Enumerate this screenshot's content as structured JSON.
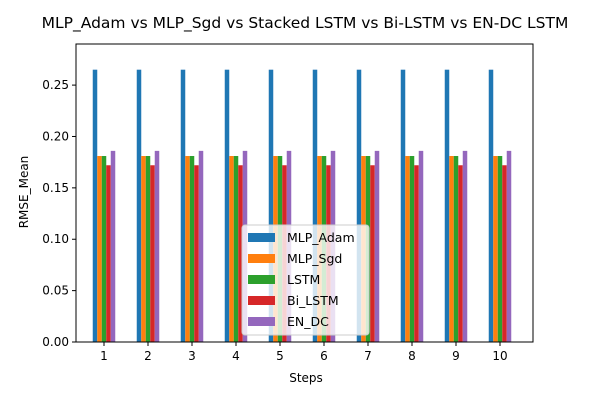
{
  "chart_data": {
    "type": "bar",
    "title": "MLP_Adam vs MLP_Sgd vs Stacked LSTM vs Bi-LSTM vs EN-DC LSTM",
    "xlabel": "Steps",
    "ylabel": "RMSE_Mean",
    "categories": [
      "1",
      "2",
      "3",
      "4",
      "5",
      "6",
      "7",
      "8",
      "9",
      "10"
    ],
    "ylim": [
      0,
      0.29
    ],
    "yticks": [
      "0.00",
      "0.05",
      "0.10",
      "0.15",
      "0.20",
      "0.25"
    ],
    "grid": false,
    "legend_position": "lower center",
    "series": [
      {
        "name": "MLP_Adam",
        "color": "#1f77b4",
        "values": [
          0.265,
          0.265,
          0.265,
          0.265,
          0.265,
          0.265,
          0.265,
          0.265,
          0.265,
          0.265
        ]
      },
      {
        "name": "MLP_Sgd",
        "color": "#ff7f0e",
        "values": [
          0.181,
          0.181,
          0.181,
          0.181,
          0.181,
          0.181,
          0.181,
          0.181,
          0.181,
          0.181
        ]
      },
      {
        "name": "LSTM",
        "color": "#2ca02c",
        "values": [
          0.181,
          0.181,
          0.181,
          0.181,
          0.181,
          0.181,
          0.181,
          0.181,
          0.181,
          0.181
        ]
      },
      {
        "name": "Bi_LSTM",
        "color": "#d62728",
        "values": [
          0.172,
          0.172,
          0.172,
          0.172,
          0.172,
          0.172,
          0.172,
          0.172,
          0.172,
          0.172
        ]
      },
      {
        "name": "EN_DC",
        "color": "#9467bd",
        "values": [
          0.186,
          0.186,
          0.186,
          0.186,
          0.186,
          0.186,
          0.186,
          0.186,
          0.186,
          0.186
        ]
      }
    ]
  }
}
